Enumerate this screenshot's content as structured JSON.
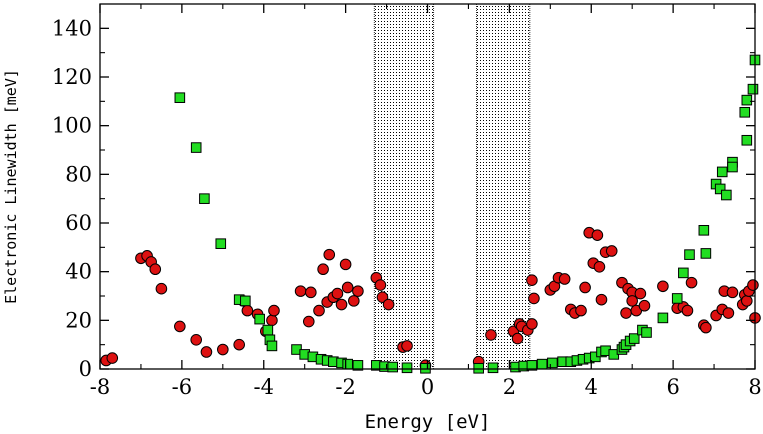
{
  "chart_data": {
    "type": "scatter",
    "title": "",
    "xlabel": "Energy [eV]",
    "ylabel": "Electronic Linewidth [meV]",
    "xlim": [
      -8,
      8
    ],
    "ylim": [
      0,
      150
    ],
    "xticks": [
      -8,
      -6,
      -4,
      -2,
      0,
      2,
      4,
      6,
      8
    ],
    "yticks": [
      0,
      20,
      40,
      60,
      80,
      100,
      120,
      140
    ],
    "grid": false,
    "legend": "none",
    "shaded_regions": [
      {
        "x0": -1.3,
        "x1": 0.15,
        "pattern": "dots"
      },
      {
        "x0": 1.2,
        "x1": 2.5,
        "pattern": "dots"
      }
    ],
    "series": [
      {
        "name": "red circles",
        "marker": "circle",
        "color": "#dd1111",
        "points": [
          [
            -7.85,
            3.5
          ],
          [
            -7.7,
            4.5
          ],
          [
            -7.0,
            45.5
          ],
          [
            -6.85,
            46.5
          ],
          [
            -6.75,
            44
          ],
          [
            -6.65,
            41
          ],
          [
            -6.5,
            33
          ],
          [
            -6.05,
            17.5
          ],
          [
            -5.65,
            12
          ],
          [
            -5.4,
            7
          ],
          [
            -5.0,
            8
          ],
          [
            -4.6,
            10
          ],
          [
            -4.5,
            28
          ],
          [
            -4.4,
            24
          ],
          [
            -4.15,
            22.5
          ],
          [
            -3.95,
            15.5
          ],
          [
            -3.8,
            20
          ],
          [
            -3.75,
            24
          ],
          [
            -3.1,
            32
          ],
          [
            -2.9,
            19.5
          ],
          [
            -2.85,
            31.5
          ],
          [
            -2.65,
            24
          ],
          [
            -2.55,
            41
          ],
          [
            -2.45,
            27.5
          ],
          [
            -2.4,
            47
          ],
          [
            -2.3,
            29.5
          ],
          [
            -2.2,
            31
          ],
          [
            -2.1,
            26.5
          ],
          [
            -2.0,
            43
          ],
          [
            -1.95,
            33.5
          ],
          [
            -1.8,
            28
          ],
          [
            -1.7,
            32
          ],
          [
            -1.25,
            37.5
          ],
          [
            -1.15,
            34.5
          ],
          [
            -1.1,
            29.5
          ],
          [
            -0.95,
            26.5
          ],
          [
            -0.6,
            9
          ],
          [
            -0.5,
            9.5
          ],
          [
            -0.05,
            1.5
          ],
          [
            1.25,
            3
          ],
          [
            1.55,
            14
          ],
          [
            2.1,
            15.5
          ],
          [
            2.2,
            12.5
          ],
          [
            2.25,
            18.5
          ],
          [
            2.3,
            17.5
          ],
          [
            2.45,
            16
          ],
          [
            2.55,
            18.5
          ],
          [
            2.55,
            36.5
          ],
          [
            2.6,
            29
          ],
          [
            3.0,
            32.5
          ],
          [
            3.1,
            34
          ],
          [
            3.2,
            37.5
          ],
          [
            3.35,
            37
          ],
          [
            3.5,
            24.5
          ],
          [
            3.6,
            23
          ],
          [
            3.75,
            24
          ],
          [
            3.85,
            33.5
          ],
          [
            3.95,
            56
          ],
          [
            4.05,
            43.5
          ],
          [
            4.15,
            55
          ],
          [
            4.2,
            42
          ],
          [
            4.25,
            28.5
          ],
          [
            4.35,
            48
          ],
          [
            4.5,
            48.5
          ],
          [
            4.75,
            35.5
          ],
          [
            4.85,
            23
          ],
          [
            4.9,
            33
          ],
          [
            5.0,
            31.5
          ],
          [
            5.0,
            28
          ],
          [
            5.1,
            24
          ],
          [
            5.2,
            31
          ],
          [
            5.3,
            26
          ],
          [
            5.75,
            34
          ],
          [
            6.1,
            25
          ],
          [
            6.25,
            25.5
          ],
          [
            6.35,
            24
          ],
          [
            6.45,
            35.5
          ],
          [
            6.75,
            18
          ],
          [
            6.8,
            17
          ],
          [
            7.05,
            22
          ],
          [
            7.2,
            24.5
          ],
          [
            7.25,
            32
          ],
          [
            7.35,
            23
          ],
          [
            7.45,
            31.5
          ],
          [
            7.7,
            26.5
          ],
          [
            7.75,
            30.5
          ],
          [
            7.8,
            28
          ],
          [
            7.85,
            32
          ],
          [
            7.95,
            34.5
          ],
          [
            8.0,
            21
          ]
        ]
      },
      {
        "name": "green squares",
        "marker": "square",
        "color": "#22dd22",
        "points": [
          [
            -6.05,
            111.5
          ],
          [
            -5.65,
            91
          ],
          [
            -5.45,
            70
          ],
          [
            -5.05,
            51.5
          ],
          [
            -4.6,
            28.5
          ],
          [
            -4.45,
            28
          ],
          [
            -4.1,
            20.5
          ],
          [
            -3.9,
            16
          ],
          [
            -3.85,
            12
          ],
          [
            -3.8,
            9.5
          ],
          [
            -3.2,
            8
          ],
          [
            -3.0,
            6
          ],
          [
            -2.8,
            5
          ],
          [
            -2.6,
            4
          ],
          [
            -2.45,
            3.5
          ],
          [
            -2.3,
            3
          ],
          [
            -2.1,
            2.5
          ],
          [
            -1.95,
            2
          ],
          [
            -1.7,
            1.5
          ],
          [
            -1.25,
            1.5
          ],
          [
            -1.05,
            1
          ],
          [
            -0.85,
            0.8
          ],
          [
            -0.5,
            0.5
          ],
          [
            -0.05,
            0.3
          ],
          [
            1.25,
            0.3
          ],
          [
            1.6,
            0.5
          ],
          [
            2.15,
            0.8
          ],
          [
            2.35,
            1.2
          ],
          [
            2.55,
            1.5
          ],
          [
            2.8,
            2
          ],
          [
            3.05,
            2.5
          ],
          [
            3.3,
            3
          ],
          [
            3.5,
            3
          ],
          [
            3.65,
            3.5
          ],
          [
            3.8,
            4
          ],
          [
            3.95,
            4.5
          ],
          [
            4.1,
            5
          ],
          [
            4.25,
            7
          ],
          [
            4.35,
            7.5
          ],
          [
            4.55,
            6
          ],
          [
            4.75,
            8
          ],
          [
            4.8,
            9
          ],
          [
            4.85,
            10
          ],
          [
            4.95,
            11.5
          ],
          [
            5.05,
            12.5
          ],
          [
            5.25,
            16
          ],
          [
            5.35,
            15
          ],
          [
            5.75,
            21
          ],
          [
            6.1,
            29
          ],
          [
            6.25,
            39.5
          ],
          [
            6.4,
            47
          ],
          [
            6.75,
            57
          ],
          [
            6.8,
            47.5
          ],
          [
            7.05,
            76
          ],
          [
            7.15,
            74
          ],
          [
            7.2,
            81
          ],
          [
            7.3,
            71.5
          ],
          [
            7.45,
            85
          ],
          [
            7.45,
            83
          ],
          [
            7.75,
            105.5
          ],
          [
            7.8,
            110.5
          ],
          [
            7.8,
            94
          ],
          [
            7.95,
            115
          ],
          [
            8.0,
            127
          ]
        ]
      }
    ]
  }
}
